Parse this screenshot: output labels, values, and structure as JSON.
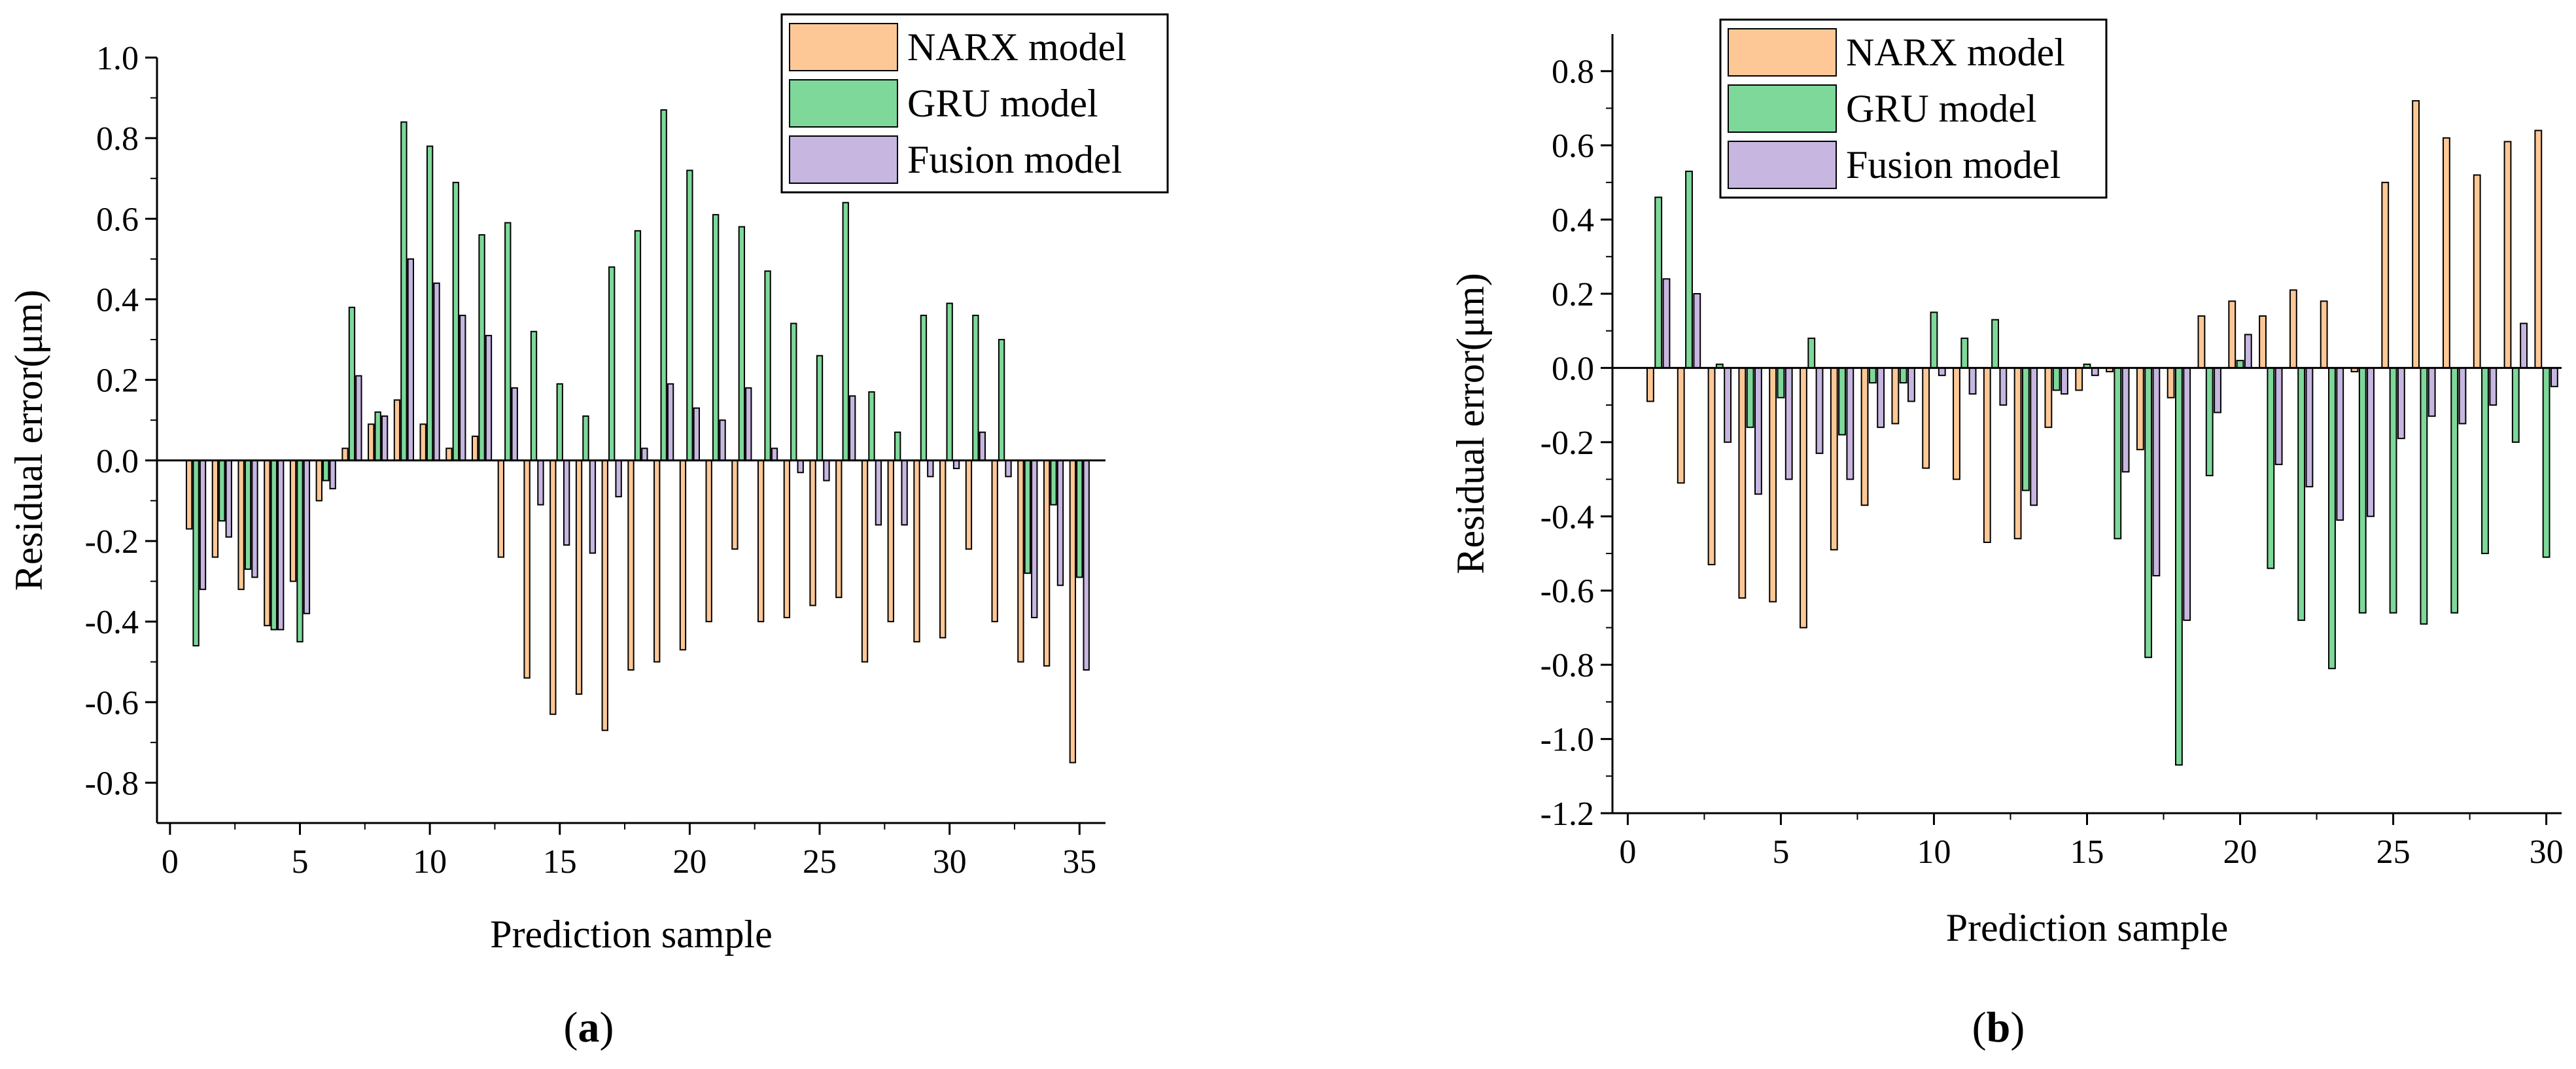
{
  "chart_data": [
    {
      "type": "bar",
      "caption": "a",
      "xlabel": "Prediction sample",
      "ylabel": "Residual error(μm)",
      "xlim": [
        -0.5,
        36
      ],
      "ylim": [
        -0.9,
        1.0
      ],
      "xticks": [
        0,
        5,
        10,
        15,
        20,
        25,
        30,
        35
      ],
      "yticks": [
        1.0,
        0.8,
        0.6,
        0.4,
        0.2,
        0.0,
        -0.2,
        -0.4,
        -0.6,
        -0.8
      ],
      "ytick_labels": [
        "1.0",
        "0.8",
        "0.6",
        "0.4",
        "0.2",
        "0.0",
        "-0.2",
        "-0.4",
        "-0.6",
        "-0.8"
      ],
      "legend_position": "top-right",
      "grid": false,
      "categories": [
        1,
        2,
        3,
        4,
        5,
        6,
        7,
        8,
        9,
        10,
        11,
        12,
        13,
        14,
        15,
        16,
        17,
        18,
        19,
        20,
        21,
        22,
        23,
        24,
        25,
        26,
        27,
        28,
        29,
        30,
        31,
        32,
        33,
        34,
        35
      ],
      "series": [
        {
          "name": "NARX model",
          "color": "#FDC896",
          "values": [
            -0.17,
            -0.24,
            -0.32,
            -0.41,
            -0.3,
            -0.1,
            0.03,
            0.09,
            0.15,
            0.09,
            0.03,
            0.06,
            -0.24,
            -0.54,
            -0.63,
            -0.58,
            -0.67,
            -0.52,
            -0.5,
            -0.47,
            -0.4,
            -0.22,
            -0.4,
            -0.39,
            -0.36,
            -0.34,
            -0.5,
            -0.4,
            -0.45,
            -0.44,
            -0.22,
            -0.4,
            -0.5,
            -0.51,
            -0.75
          ]
        },
        {
          "name": "GRU model",
          "color": "#7DD89A",
          "values": [
            -0.46,
            -0.15,
            -0.27,
            -0.42,
            -0.45,
            -0.05,
            0.38,
            0.12,
            0.84,
            0.78,
            0.69,
            0.56,
            0.59,
            0.32,
            0.19,
            0.11,
            0.48,
            0.57,
            0.87,
            0.72,
            0.61,
            0.58,
            0.47,
            0.34,
            0.26,
            0.64,
            0.17,
            0.07,
            0.36,
            0.39,
            0.36,
            0.3,
            -0.28,
            -0.11,
            -0.29
          ]
        },
        {
          "name": "Fusion model",
          "color": "#C6B6E0",
          "values": [
            -0.32,
            -0.19,
            -0.29,
            -0.42,
            -0.38,
            -0.07,
            0.21,
            0.11,
            0.5,
            0.44,
            0.36,
            0.31,
            0.18,
            -0.11,
            -0.21,
            -0.23,
            -0.09,
            0.03,
            0.19,
            0.13,
            0.1,
            0.18,
            0.03,
            -0.03,
            -0.05,
            0.16,
            -0.16,
            -0.16,
            -0.04,
            -0.02,
            0.07,
            -0.04,
            -0.39,
            -0.31,
            -0.52
          ]
        }
      ]
    },
    {
      "type": "bar",
      "caption": "b",
      "xlabel": "Prediction sample",
      "ylabel": "Residual error(μm)",
      "xlim": [
        -0.5,
        30.5
      ],
      "ylim": [
        -1.2,
        0.9
      ],
      "xticks": [
        0,
        5,
        10,
        15,
        20,
        25,
        30
      ],
      "yticks": [
        0.8,
        0.6,
        0.4,
        0.2,
        0.0,
        -0.2,
        -0.4,
        -0.6,
        -0.8,
        -1.0,
        -1.2
      ],
      "ytick_labels": [
        "0.8",
        "0.6",
        "0.4",
        "0.2",
        "0.0",
        "-0.2",
        "-0.4",
        "-0.6",
        "-0.8",
        "-1.0",
        "-1.2"
      ],
      "legend_position": "top-left",
      "grid": false,
      "categories": [
        1,
        2,
        3,
        4,
        5,
        6,
        7,
        8,
        9,
        10,
        11,
        12,
        13,
        14,
        15,
        16,
        17,
        18,
        19,
        20,
        21,
        22,
        23,
        24,
        25,
        26,
        27,
        28,
        29,
        30
      ],
      "series": [
        {
          "name": "NARX model",
          "color": "#FDC896",
          "values": [
            -0.09,
            -0.31,
            -0.53,
            -0.62,
            -0.63,
            -0.7,
            -0.49,
            -0.37,
            -0.15,
            -0.27,
            -0.3,
            -0.47,
            -0.46,
            -0.16,
            -0.06,
            -0.01,
            -0.22,
            -0.08,
            0.14,
            0.18,
            0.14,
            0.21,
            0.18,
            -0.01,
            0.5,
            0.72,
            0.62,
            0.52,
            0.61,
            0.64
          ]
        },
        {
          "name": "GRU model",
          "color": "#7DD89A",
          "values": [
            0.46,
            0.53,
            0.01,
            -0.16,
            -0.08,
            0.08,
            -0.18,
            -0.04,
            -0.04,
            0.15,
            0.08,
            0.13,
            -0.33,
            -0.06,
            0.01,
            -0.46,
            -0.78,
            -1.07,
            -0.29,
            0.02,
            -0.54,
            -0.68,
            -0.81,
            -0.66,
            -0.66,
            -0.69,
            -0.66,
            -0.5,
            -0.2,
            -0.51
          ]
        },
        {
          "name": "Fusion model",
          "color": "#C6B6E0",
          "values": [
            0.24,
            0.2,
            -0.2,
            -0.34,
            -0.3,
            -0.23,
            -0.3,
            -0.16,
            -0.09,
            -0.02,
            -0.07,
            -0.1,
            -0.37,
            -0.07,
            -0.02,
            -0.28,
            -0.56,
            -0.68,
            -0.12,
            0.09,
            -0.26,
            -0.32,
            -0.41,
            -0.4,
            -0.19,
            -0.13,
            -0.15,
            -0.1,
            0.12,
            -0.05
          ]
        }
      ]
    }
  ]
}
